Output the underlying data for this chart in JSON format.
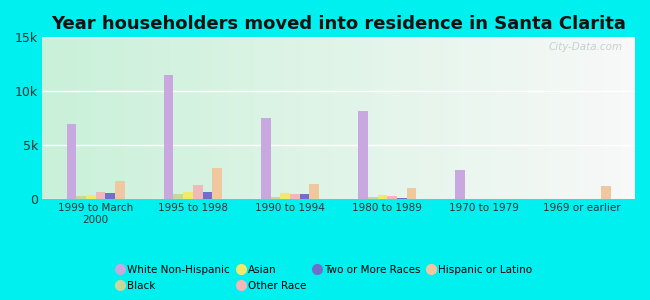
{
  "title": "Year householders moved into residence in Santa Clarita",
  "categories": [
    "1999 to March\n2000",
    "1995 to 1998",
    "1990 to 1994",
    "1980 to 1989",
    "1970 to 1979",
    "1969 or earlier"
  ],
  "series_order": [
    "White Non-Hispanic",
    "Black",
    "Asian",
    "Other Race",
    "Two or More Races",
    "Hispanic or Latino"
  ],
  "series": {
    "White Non-Hispanic": [
      7000,
      11500,
      7500,
      8200,
      2700,
      0
    ],
    "Black": [
      300,
      500,
      250,
      200,
      50,
      0
    ],
    "Asian": [
      400,
      700,
      550,
      350,
      50,
      0
    ],
    "Other Race": [
      650,
      1300,
      500,
      300,
      0,
      0
    ],
    "Two or More Races": [
      550,
      650,
      450,
      150,
      0,
      0
    ],
    "Hispanic or Latino": [
      1700,
      2900,
      1400,
      1000,
      0,
      1200
    ]
  },
  "colors": {
    "White Non-Hispanic": "#c9a8e0",
    "Black": "#c8d89a",
    "Asian": "#f0ea6a",
    "Other Race": "#f0b8b8",
    "Two or More Races": "#7070cc",
    "Hispanic or Latino": "#f0c8a0"
  },
  "ylim": [
    0,
    15000
  ],
  "yticks": [
    0,
    5000,
    10000,
    15000
  ],
  "ytick_labels": [
    "0",
    "5k",
    "10k",
    "15k"
  ],
  "background_color": "#00f0f0",
  "plot_bg_left": "#c8f0d8",
  "plot_bg_right": "#f8f8f8",
  "watermark": "City-Data.com",
  "title_fontsize": 13,
  "legend_order": [
    "White Non-Hispanic",
    "Black",
    "Asian",
    "Other Race",
    "Two or More Races",
    "Hispanic or Latino"
  ]
}
